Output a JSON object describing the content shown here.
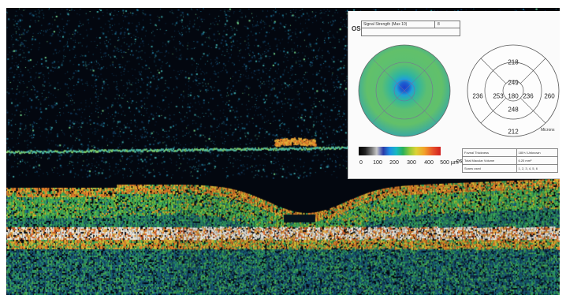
{
  "report": {
    "eye": "OS",
    "signal_strength_label": "Signal Strength (Max 10)",
    "signal_strength_value": "8",
    "units": "Microns",
    "scale_ticks": [
      "0",
      "100",
      "200",
      "300",
      "400",
      "500 µm"
    ],
    "sectors": {
      "superior_outer": "218",
      "superior_inner": "249",
      "temporal_outer": "236",
      "temporal_inner": "253",
      "center": "180",
      "nasal_inner": "236",
      "nasal_outer": "260",
      "inferior_inner": "248",
      "inferior_outer": "212"
    },
    "table": {
      "foveal_label": "Foveal Thickness",
      "foveal_value": "180+/-Unknown",
      "volume_label": "Total Macular Volume",
      "volume_value": "6.20 mm³",
      "scans_label": "Scans used",
      "scans_value": "1, 2, 3, 4, 5, 6"
    }
  },
  "colors": {
    "background": "#03070f",
    "map_outer": "#5cbf72",
    "map_mid": "#33b39a",
    "map_center": "#1d5fd0",
    "layer_green": "#3fb15a",
    "layer_orange": "#e8832a",
    "layer_white": "#f1eee4"
  }
}
